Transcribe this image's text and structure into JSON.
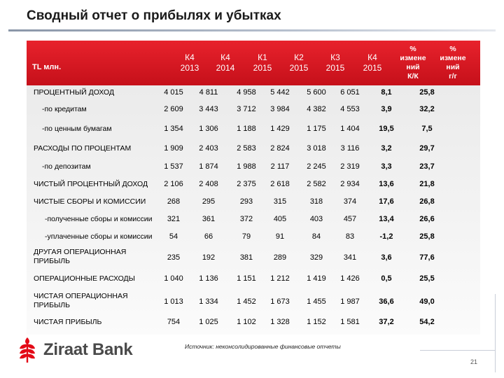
{
  "title": "Сводный отчет о прибылях и убытках",
  "header": {
    "label": "TL млн.",
    "columns": [
      "К4\n2013",
      "К4\n2014",
      "К1\n2015",
      "К2\n2015",
      "К3\n2015",
      "К4\n2015",
      "%\nизмене\nний\nК/К",
      "%\nизмене\nний\nг/г"
    ]
  },
  "rows": [
    {
      "label": "ПРОЦЕНТНЫЙ ДОХОД",
      "values": [
        "4 015",
        "4 811",
        "4 958",
        "5 442",
        "5 600",
        "6 051",
        "8,1",
        "25,8"
      ]
    },
    {
      "label": "-по кредитам",
      "values": [
        "2 609",
        "3 443",
        "3 712",
        "3 984",
        "4 382",
        "4 553",
        "3,9",
        "32,2"
      ]
    },
    {
      "label": "-по ценным бумагам",
      "values": [
        "1 354",
        "1 306",
        "1 188",
        "1 429",
        "1 175",
        "1 404",
        "19,5",
        "7,5"
      ]
    },
    {
      "label": "РАСХОДЫ ПО ПРОЦЕНТАМ",
      "values": [
        "1 909",
        "2 403",
        "2 583",
        "2 824",
        "3 018",
        "3 116",
        "3,2",
        "29,7"
      ]
    },
    {
      "label": "-по депозитам",
      "values": [
        "1 537",
        "1 874",
        "1 988",
        "2 117",
        "2 245",
        "2 319",
        "3,3",
        "23,7"
      ]
    },
    {
      "label": "ЧИСТЫЙ ПРОЦЕНТНЫЙ ДОХОД",
      "values": [
        "2 106",
        "2 408",
        "2 375",
        "2 618",
        "2 582",
        "2 934",
        "13,6",
        "21,8"
      ]
    },
    {
      "label": "ЧИСТЫЕ СБОРЫ И КОМИССИИ",
      "values": [
        "268",
        "295",
        "293",
        "315",
        "318",
        "374",
        "17,6",
        "26,8"
      ]
    },
    {
      "label": "-полученные сборы и комиссии",
      "values": [
        "321",
        "361",
        "372",
        "405",
        "403",
        "457",
        "13,4",
        "26,6"
      ]
    },
    {
      "label": "-уплаченные сборы и комиссии",
      "values": [
        "54",
        "66",
        "79",
        "91",
        "84",
        "83",
        "-1,2",
        "25,8"
      ]
    },
    {
      "label": "ДРУГАЯ ОПЕРАЦИОННАЯ\nПРИБЫЛЬ",
      "values": [
        "235",
        "192",
        "381",
        "289",
        "329",
        "341",
        "3,6",
        "77,6"
      ]
    },
    {
      "label": "ОПЕРАЦИОННЫЕ РАСХОДЫ",
      "values": [
        "1 040",
        "1 136",
        "1 151",
        "1 212",
        "1 419",
        "1 426",
        "0,5",
        "25,5"
      ]
    },
    {
      "label": "ЧИСТАЯ ОПЕРАЦИОННАЯ\nПРИБЫЛЬ",
      "values": [
        "1 013",
        "1 334",
        "1 452",
        "1 673",
        "1 455",
        "1 987",
        "36,6",
        "49,0"
      ]
    },
    {
      "label": "ЧИСТАЯ ПРИБЫЛЬ",
      "values": [
        "754",
        "1 025",
        "1 102",
        "1 328",
        "1 152",
        "1 581",
        "37,2",
        "54,2"
      ]
    }
  ],
  "logo": {
    "text": "Ziraat Bank",
    "icon": "ziraat-wheat-icon",
    "color": "#e30a17"
  },
  "source": "Источник: неконсолидированные финансовые отчеты",
  "page_number": "21",
  "colors": {
    "header": "#d6141e",
    "accent": "#e30a17"
  }
}
